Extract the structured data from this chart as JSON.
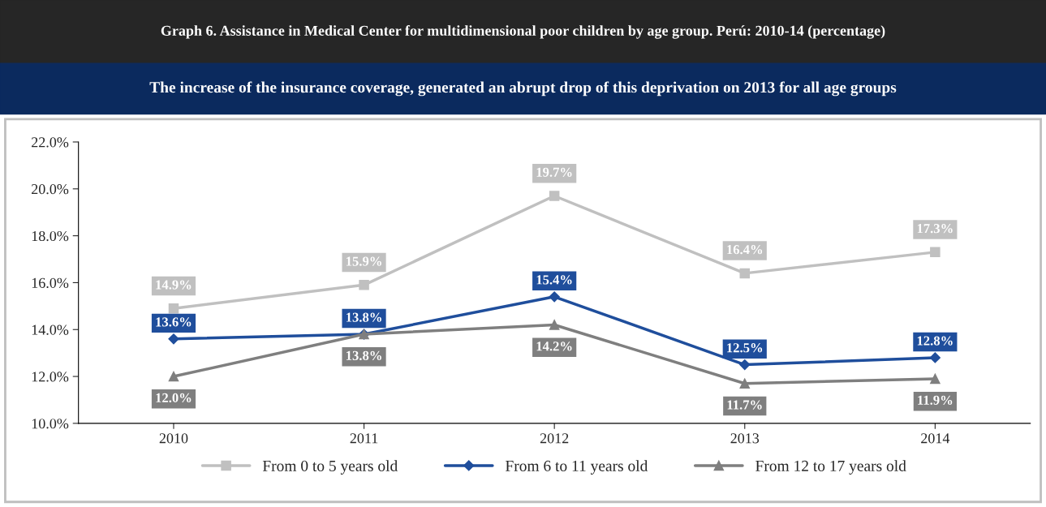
{
  "chart_data": {
    "type": "line",
    "title": "Graph 6. Assistance in Medical Center for multidimensional poor children by age group. Perú: 2010-14 (percentage)",
    "subtitle": "The increase of the insurance coverage, generated an abrupt drop of this deprivation on 2013 for all age groups",
    "categories": [
      "2010",
      "2011",
      "2012",
      "2013",
      "2014"
    ],
    "series": [
      {
        "name": "From 0 to 5 years old",
        "color": "#c0c0c0",
        "marker": "square",
        "values": [
          14.9,
          15.9,
          19.7,
          16.4,
          17.3
        ],
        "value_labels": [
          "14.9%",
          "15.9%",
          "19.7%",
          "16.4%",
          "17.3%"
        ]
      },
      {
        "name": "From 6 to 11 years old",
        "color": "#1f4e9c",
        "marker": "diamond",
        "values": [
          13.6,
          13.8,
          15.4,
          12.5,
          12.8
        ],
        "value_labels": [
          "13.6%",
          "13.8%",
          "15.4%",
          "12.5%",
          "12.8%"
        ]
      },
      {
        "name": "From 12 to 17 years old",
        "color": "#7f7f7f",
        "marker": "triangle",
        "values": [
          12.0,
          13.8,
          14.2,
          11.7,
          11.9
        ],
        "value_labels": [
          "12.0%",
          "13.8%",
          "14.2%",
          "11.7%",
          "11.9%"
        ]
      }
    ],
    "ylim": [
      10,
      22
    ],
    "yticks": [
      {
        "value": 10,
        "label": "10.0%"
      },
      {
        "value": 12,
        "label": "12.0%"
      },
      {
        "value": 14,
        "label": "14.0%"
      },
      {
        "value": 16,
        "label": "16.0%"
      },
      {
        "value": 18,
        "label": "18.0%"
      },
      {
        "value": 20,
        "label": "20.0%"
      },
      {
        "value": 22,
        "label": "22.0%"
      }
    ],
    "grid": false,
    "legend": "bottom",
    "line_style": "solid"
  }
}
